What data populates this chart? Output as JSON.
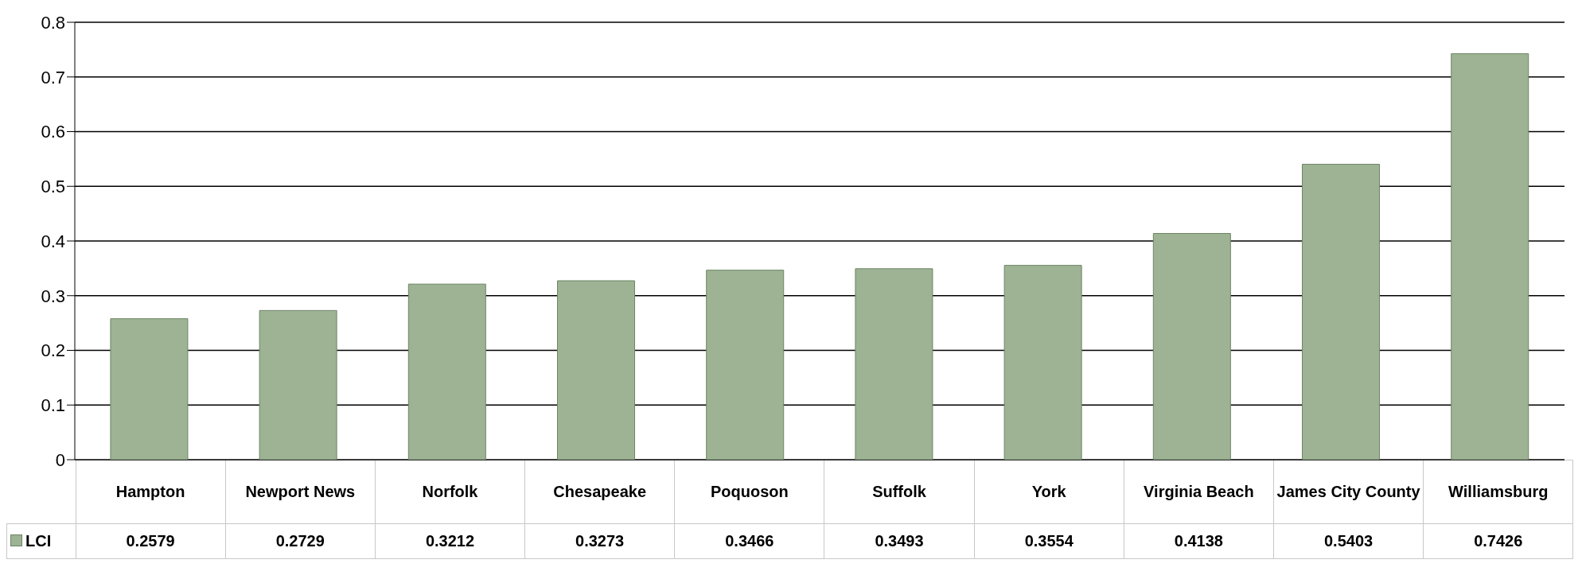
{
  "chart_data": {
    "type": "bar",
    "categories": [
      "Hampton",
      "Newport News",
      "Norfolk",
      "Chesapeake",
      "Poquoson",
      "Suffolk",
      "York",
      "Virginia Beach",
      "James City County",
      "Williamsburg"
    ],
    "series": [
      {
        "name": "LCI",
        "color": "#9db393",
        "values": [
          0.2579,
          0.2729,
          0.3212,
          0.3273,
          0.3466,
          0.3493,
          0.3554,
          0.4138,
          0.5403,
          0.7426
        ]
      }
    ],
    "ylim": [
      0,
      0.8
    ],
    "yticks": [
      0,
      0.1,
      0.2,
      0.3,
      0.4,
      0.5,
      0.6,
      0.7,
      0.8
    ],
    "grid": "y",
    "legend": "bottom left",
    "data_labels": true
  }
}
